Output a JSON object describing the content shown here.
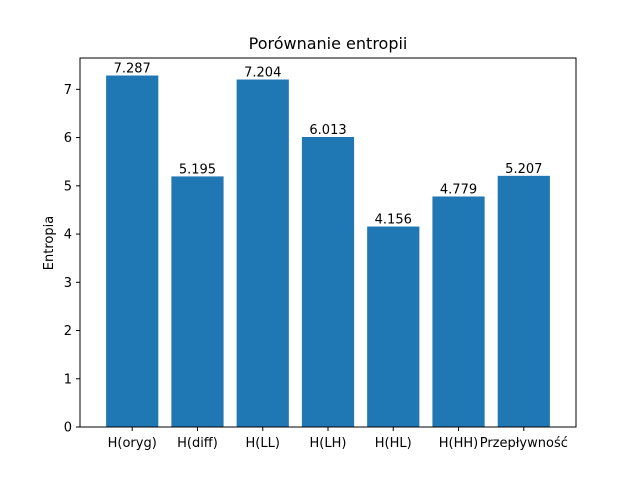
{
  "chart_data": {
    "type": "bar",
    "title": "Porównanie entropii",
    "xlabel": "",
    "ylabel": "Entropia",
    "categories": [
      "H(oryg)",
      "H(diff)",
      "H(LL)",
      "H(LH)",
      "H(HL)",
      "H(HH)",
      "Przepływność"
    ],
    "values": [
      7.287,
      5.195,
      7.204,
      6.013,
      4.156,
      4.779,
      5.207
    ],
    "value_labels": [
      "7.287",
      "5.195",
      "7.204",
      "6.013",
      "4.156",
      "4.779",
      "5.207"
    ],
    "ylim": [
      0,
      7.65
    ],
    "yticks": [
      0,
      1,
      2,
      3,
      4,
      5,
      6,
      7
    ],
    "ytick_labels": [
      "0",
      "1",
      "2",
      "3",
      "4",
      "5",
      "6",
      "7"
    ],
    "bar_color": "#1f77b4",
    "grid": false,
    "legend": "none"
  }
}
